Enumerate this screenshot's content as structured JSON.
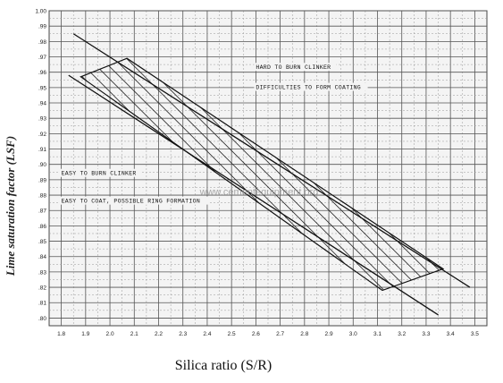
{
  "chart_data": {
    "type": "line",
    "title": "",
    "xlabel": "Silica ratio (S/R)",
    "ylabel": "Lime saturation factor (LSF)",
    "xlim": [
      1.75,
      3.55
    ],
    "ylim": [
      0.795,
      1.0
    ],
    "x_ticks": [
      "1.8",
      "1.9",
      "2.0",
      "2.1",
      "2.2",
      "2.3",
      "2.4",
      "2.5",
      "2.6",
      "2.7",
      "2.8",
      "2.9",
      "3.0",
      "3.1",
      "3.2",
      "3.3",
      "3.4",
      "3.5"
    ],
    "y_ticks": [
      {
        "value": 1.0,
        "label": "1.00"
      },
      {
        "value": 0.99,
        "label": ".99"
      },
      {
        "value": 0.98,
        "label": ".98"
      },
      {
        "value": 0.97,
        "label": ".97"
      },
      {
        "value": 0.96,
        "label": ".96"
      },
      {
        "value": 0.95,
        "label": ".95"
      },
      {
        "value": 0.94,
        "label": ".94"
      },
      {
        "value": 0.93,
        "label": ".93"
      },
      {
        "value": 0.92,
        "label": ".92"
      },
      {
        "value": 0.91,
        "label": ".91"
      },
      {
        "value": 0.9,
        "label": ".90"
      },
      {
        "value": 0.89,
        "label": ".89"
      },
      {
        "value": 0.88,
        "label": ".88"
      },
      {
        "value": 0.87,
        "label": ".87"
      },
      {
        "value": 0.86,
        "label": ".86"
      },
      {
        "value": 0.85,
        "label": ".85"
      },
      {
        "value": 0.84,
        "label": ".84"
      },
      {
        "value": 0.83,
        "label": ".83"
      },
      {
        "value": 0.82,
        "label": ".82"
      },
      {
        "value": 0.81,
        "label": ".81"
      },
      {
        "value": 0.8,
        "label": ".80"
      }
    ],
    "grid": true,
    "boundary_lines": [
      {
        "points": [
          [
            1.85,
            0.985
          ],
          [
            3.48,
            0.82
          ]
        ]
      },
      {
        "points": [
          [
            1.83,
            0.958
          ],
          [
            3.35,
            0.802
          ]
        ]
      }
    ],
    "hatched_region": {
      "points": [
        [
          1.88,
          0.957
        ],
        [
          2.07,
          0.969
        ],
        [
          3.37,
          0.832
        ],
        [
          3.12,
          0.818
        ]
      ]
    },
    "annotations": [
      {
        "text": "HARD TO BURN CLINKER",
        "x": 2.6,
        "y": 0.962
      },
      {
        "text": "DIFFICULTIES TO FORM COATING",
        "x": 2.6,
        "y": 0.949
      },
      {
        "text": "EASY TO BURN CLINKER",
        "x": 1.8,
        "y": 0.893
      },
      {
        "text": "EASY TO COAT, POSSIBLE RING FORMATION",
        "x": 1.8,
        "y": 0.875
      }
    ],
    "watermark": "www.cementequipment.org"
  }
}
